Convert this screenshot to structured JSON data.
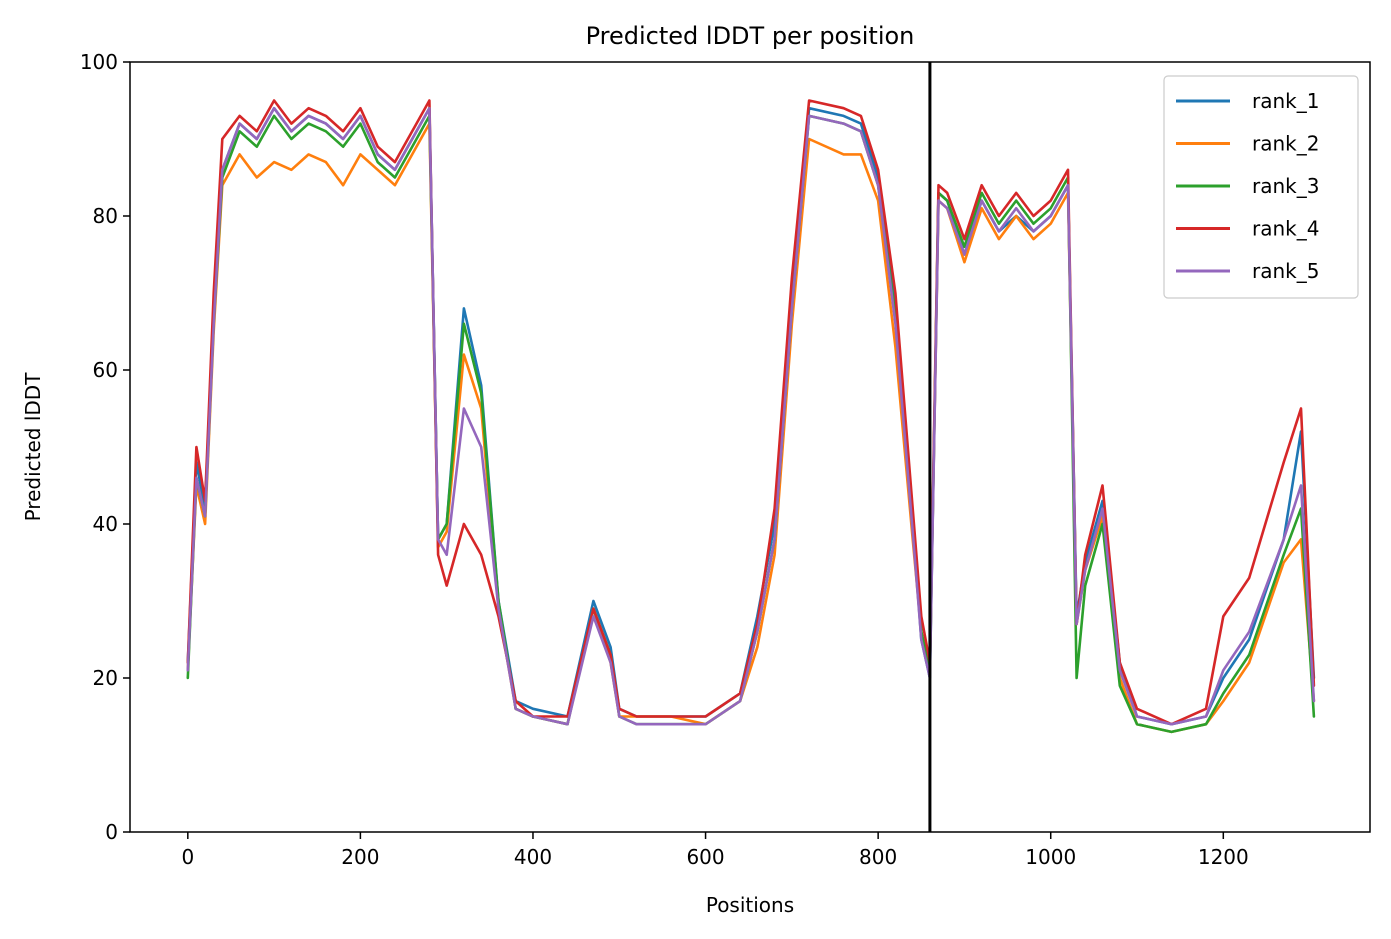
{
  "chart_data": {
    "type": "line",
    "title": "Predicted lDDT per position",
    "xlabel": "Positions",
    "ylabel": "Predicted lDDT",
    "xlim": [
      -67,
      1370
    ],
    "ylim": [
      0,
      100
    ],
    "xticks": [
      0,
      200,
      400,
      600,
      800,
      1000,
      1200
    ],
    "yticks": [
      0,
      20,
      40,
      60,
      80,
      100
    ],
    "grid": false,
    "legend_position": "top-right",
    "vertical_line_x": 860,
    "vertical_line_color": "#000000",
    "x": [
      0,
      10,
      20,
      30,
      40,
      60,
      80,
      100,
      120,
      140,
      160,
      180,
      200,
      220,
      240,
      260,
      280,
      290,
      300,
      320,
      340,
      360,
      380,
      400,
      440,
      470,
      490,
      500,
      520,
      560,
      600,
      640,
      660,
      680,
      700,
      720,
      760,
      780,
      800,
      820,
      840,
      850,
      860,
      870,
      880,
      900,
      920,
      940,
      960,
      980,
      1000,
      1020,
      1030,
      1040,
      1060,
      1080,
      1100,
      1140,
      1180,
      1200,
      1230,
      1270,
      1290,
      1305
    ],
    "series": [
      {
        "name": "rank_1",
        "color": "#1f77b4",
        "values": [
          22,
          48,
          42,
          68,
          86,
          92,
          90,
          94,
          91,
          93,
          92,
          90,
          93,
          88,
          86,
          90,
          94,
          38,
          40,
          68,
          58,
          30,
          17,
          16,
          15,
          30,
          24,
          16,
          15,
          15,
          15,
          18,
          28,
          40,
          70,
          94,
          93,
          92,
          85,
          68,
          40,
          25,
          20,
          83,
          82,
          75,
          82,
          78,
          80,
          78,
          80,
          84,
          28,
          35,
          43,
          22,
          15,
          14,
          15,
          20,
          25,
          38,
          52,
          20
        ]
      },
      {
        "name": "rank_2",
        "color": "#ff7f0e",
        "values": [
          21,
          45,
          40,
          65,
          84,
          88,
          85,
          87,
          86,
          88,
          87,
          84,
          88,
          86,
          84,
          88,
          92,
          37,
          39,
          62,
          55,
          29,
          16,
          15,
          14,
          29,
          22,
          15,
          15,
          15,
          14,
          17,
          24,
          36,
          66,
          90,
          88,
          88,
          82,
          63,
          38,
          26,
          21,
          82,
          81,
          74,
          81,
          77,
          80,
          77,
          79,
          83,
          27,
          34,
          41,
          20,
          14,
          13,
          14,
          17,
          22,
          35,
          38,
          17
        ]
      },
      {
        "name": "rank_3",
        "color": "#2ca02c",
        "values": [
          20,
          46,
          41,
          66,
          85,
          91,
          89,
          93,
          90,
          92,
          91,
          89,
          92,
          87,
          85,
          89,
          93,
          38,
          40,
          66,
          57,
          30,
          16,
          15,
          14,
          29,
          23,
          15,
          14,
          14,
          14,
          17,
          26,
          38,
          68,
          93,
          92,
          91,
          84,
          67,
          40,
          26,
          21,
          83,
          82,
          76,
          83,
          79,
          82,
          79,
          81,
          85,
          20,
          32,
          40,
          19,
          14,
          13,
          14,
          18,
          23,
          36,
          42,
          15
        ]
      },
      {
        "name": "rank_4",
        "color": "#d62728",
        "values": [
          22,
          50,
          43,
          70,
          90,
          93,
          91,
          95,
          92,
          94,
          93,
          91,
          94,
          89,
          87,
          91,
          95,
          36,
          32,
          40,
          36,
          28,
          17,
          15,
          15,
          29,
          23,
          16,
          15,
          15,
          15,
          18,
          27,
          42,
          72,
          95,
          94,
          93,
          86,
          70,
          42,
          28,
          22,
          84,
          83,
          77,
          84,
          80,
          83,
          80,
          82,
          86,
          27,
          36,
          45,
          22,
          16,
          14,
          16,
          28,
          33,
          48,
          55,
          19
        ]
      },
      {
        "name": "rank_5",
        "color": "#9467bd",
        "values": [
          21,
          46,
          41,
          66,
          86,
          92,
          90,
          94,
          91,
          93,
          92,
          90,
          93,
          88,
          86,
          90,
          94,
          38,
          36,
          55,
          50,
          29,
          16,
          15,
          14,
          28,
          22,
          15,
          14,
          14,
          14,
          17,
          26,
          38,
          68,
          93,
          92,
          91,
          84,
          66,
          39,
          25,
          20,
          82,
          81,
          75,
          82,
          78,
          81,
          78,
          80,
          84,
          27,
          34,
          42,
          21,
          15,
          14,
          15,
          21,
          26,
          38,
          45,
          17
        ]
      }
    ]
  }
}
